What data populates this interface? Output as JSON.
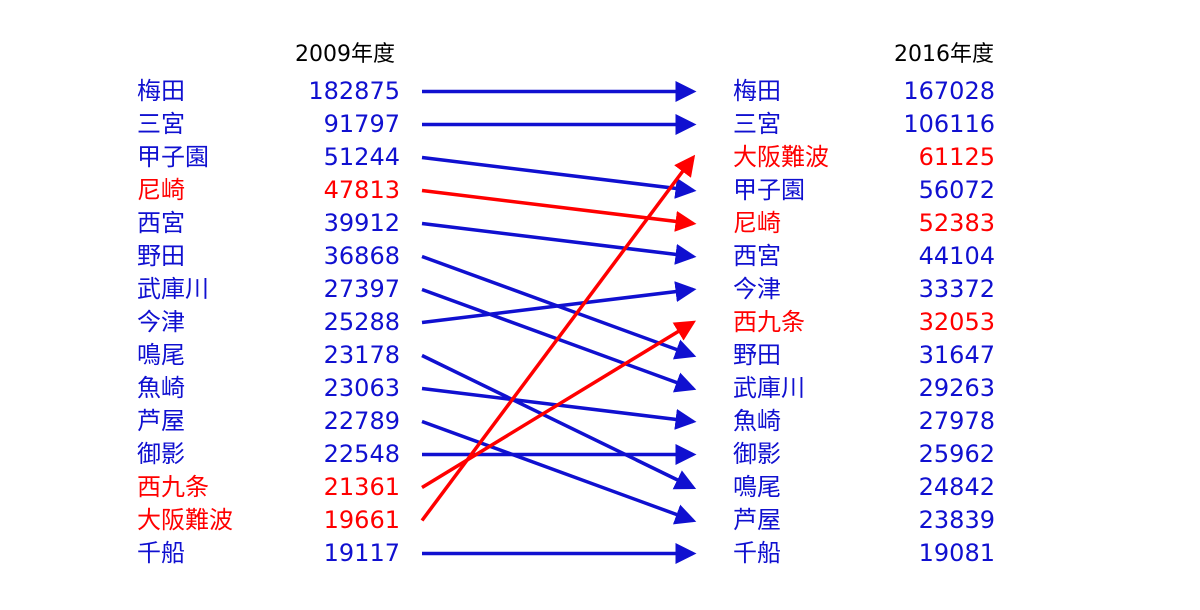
{
  "colors": {
    "normal": "#1010d0",
    "highlight": "#ff0000"
  },
  "chart_data": {
    "type": "slope",
    "headers": {
      "left": "2009年度",
      "right": "2016年度"
    },
    "left": [
      {
        "name": "梅田",
        "value": 182875,
        "highlight": false
      },
      {
        "name": "三宮",
        "value": 91797,
        "highlight": false
      },
      {
        "name": "甲子園",
        "value": 51244,
        "highlight": false
      },
      {
        "name": "尼崎",
        "value": 47813,
        "highlight": true
      },
      {
        "name": "西宮",
        "value": 39912,
        "highlight": false
      },
      {
        "name": "野田",
        "value": 36868,
        "highlight": false
      },
      {
        "name": "武庫川",
        "value": 27397,
        "highlight": false
      },
      {
        "name": "今津",
        "value": 25288,
        "highlight": false
      },
      {
        "name": "鳴尾",
        "value": 23178,
        "highlight": false
      },
      {
        "name": "魚崎",
        "value": 23063,
        "highlight": false
      },
      {
        "name": "芦屋",
        "value": 22789,
        "highlight": false
      },
      {
        "name": "御影",
        "value": 22548,
        "highlight": false
      },
      {
        "name": "西九条",
        "value": 21361,
        "highlight": true
      },
      {
        "name": "大阪難波",
        "value": 19661,
        "highlight": true
      },
      {
        "name": "千船",
        "value": 19117,
        "highlight": false
      }
    ],
    "right": [
      {
        "name": "梅田",
        "value": 167028,
        "highlight": false
      },
      {
        "name": "三宮",
        "value": 106116,
        "highlight": false
      },
      {
        "name": "大阪難波",
        "value": 61125,
        "highlight": true
      },
      {
        "name": "甲子園",
        "value": 56072,
        "highlight": false
      },
      {
        "name": "尼崎",
        "value": 52383,
        "highlight": true
      },
      {
        "name": "西宮",
        "value": 44104,
        "highlight": false
      },
      {
        "name": "今津",
        "value": 33372,
        "highlight": false
      },
      {
        "name": "西九条",
        "value": 32053,
        "highlight": true
      },
      {
        "name": "野田",
        "value": 31647,
        "highlight": false
      },
      {
        "name": "武庫川",
        "value": 29263,
        "highlight": false
      },
      {
        "name": "魚崎",
        "value": 27978,
        "highlight": false
      },
      {
        "name": "御影",
        "value": 25962,
        "highlight": false
      },
      {
        "name": "鳴尾",
        "value": 24842,
        "highlight": false
      },
      {
        "name": "芦屋",
        "value": 23839,
        "highlight": false
      },
      {
        "name": "千船",
        "value": 19081,
        "highlight": false
      }
    ]
  }
}
